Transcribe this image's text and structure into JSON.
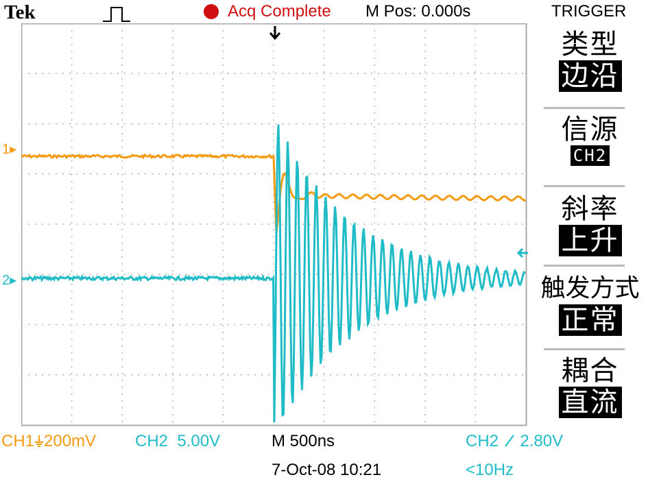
{
  "header": {
    "brand": "Tek",
    "acq_status": "Acq Complete",
    "m_pos": "M Pos: 0.000s",
    "menu_title": "TRIGGER"
  },
  "menu": [
    {
      "label": "类型",
      "value": "边沿"
    },
    {
      "label": "信源",
      "value": "CH2"
    },
    {
      "label": "斜率",
      "value": "上升"
    },
    {
      "label": "触发方式",
      "value": "正常"
    },
    {
      "label": "耦合",
      "value": "直流"
    }
  ],
  "readouts": {
    "ch1": "CH1",
    "ch1_scale": "200mV",
    "ch2": "CH2",
    "ch2_scale": "5.00V",
    "timebase": "M 500ns",
    "trigger": "CH2",
    "trigger_level": "2.80V",
    "date": "7-Oct-08 10:21",
    "freq": "<10Hz"
  },
  "markers": {
    "ch1": "1",
    "ch2": "2"
  },
  "colors": {
    "ch1": "#f59a10",
    "ch2": "#1fbcc8",
    "acq": "#d01010",
    "grid": "#aaaaaa"
  },
  "icons": {
    "trigger_pos": "down-arrow-icon",
    "trigger_level": "left-arrow-icon",
    "ch1_coupling": "ground-icon",
    "slope": "rising-edge-icon",
    "acq_mode": "pulse-icon"
  }
}
